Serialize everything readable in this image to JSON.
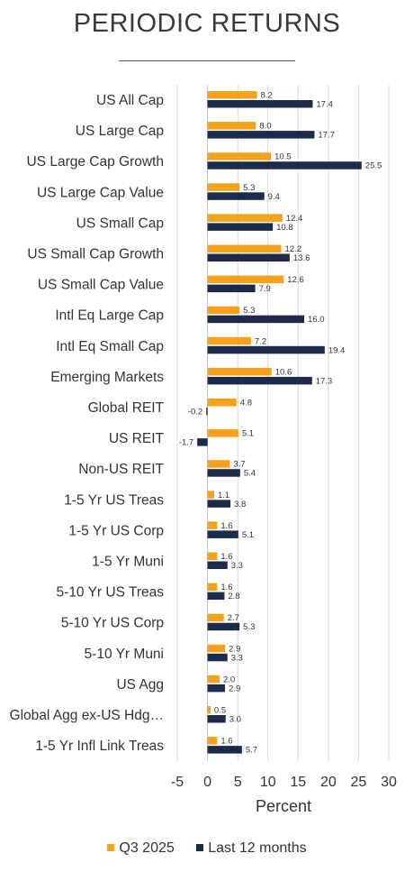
{
  "chart_data": {
    "type": "bar",
    "orientation": "horizontal",
    "title": "PERIODIC RETURNS",
    "xlabel": "Percent",
    "ylabel": "",
    "xlim": [
      -5,
      30
    ],
    "xticks": [
      -5,
      0,
      5,
      10,
      15,
      20,
      25,
      30
    ],
    "grid": true,
    "legend_position": "bottom",
    "categories": [
      "US All Cap",
      "US Large Cap",
      "US Large Cap Growth",
      "US Large Cap Value",
      "US Small Cap",
      "US Small Cap Growth",
      "US Small Cap Value",
      "Intl Eq Large Cap",
      "Intl Eq Small Cap",
      "Emerging Markets",
      "Global REIT",
      "US REIT",
      "Non-US REIT",
      "1-5 Yr US Treas",
      "1-5 Yr US Corp",
      "1-5 Yr Muni",
      "5-10 Yr US Treas",
      "5-10 Yr US Corp",
      "5-10 Yr Muni",
      "US Agg",
      "Global Agg ex-US Hdg…",
      "1-5 Yr Infl Link Treas"
    ],
    "series": [
      {
        "name": "Q3 2025",
        "color": "#f5a11c",
        "values": [
          8.2,
          8.0,
          10.5,
          5.3,
          12.4,
          12.2,
          12.6,
          5.3,
          7.2,
          10.6,
          4.8,
          5.1,
          3.7,
          1.1,
          1.6,
          1.6,
          1.6,
          2.7,
          2.9,
          2.0,
          0.5,
          1.6
        ]
      },
      {
        "name": "Last 12 months",
        "color": "#1c2b4a",
        "values": [
          17.4,
          17.7,
          25.5,
          9.4,
          10.8,
          13.6,
          7.9,
          16.0,
          19.4,
          17.3,
          -0.2,
          -1.7,
          5.4,
          3.8,
          5.1,
          3.3,
          2.8,
          5.3,
          3.3,
          2.9,
          3.0,
          5.7
        ]
      }
    ]
  },
  "colors": {
    "grid": "#d9d9d9",
    "text": "#333333",
    "axis": "#bfbfbf"
  }
}
